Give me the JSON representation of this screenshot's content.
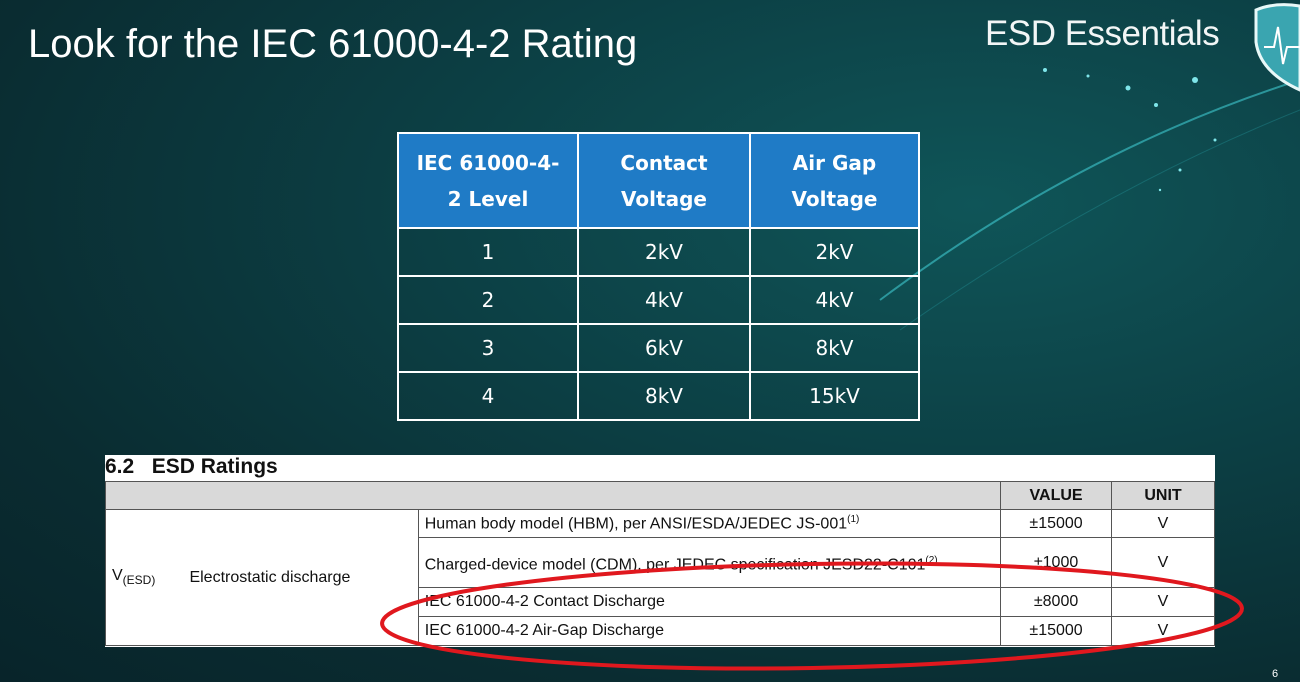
{
  "slide": {
    "title": "Look for the IEC 61000-4-2 Rating",
    "brand": "ESD Essentials",
    "page_number": "6"
  },
  "level_table": {
    "headers": [
      "IEC 61000-4-2 Level",
      "Contact Voltage",
      "Air Gap Voltage"
    ],
    "rows": [
      [
        "1",
        "2kV",
        "2kV"
      ],
      [
        "2",
        "4kV",
        "4kV"
      ],
      [
        "3",
        "6kV",
        "8kV"
      ],
      [
        "4",
        "8kV",
        "15kV"
      ]
    ]
  },
  "esd_ratings": {
    "title": "6.2   ESD Ratings",
    "headers": {
      "value": "VALUE",
      "unit": "UNIT"
    },
    "symbol": "V",
    "symbol_sub": "(ESD)",
    "parameter": "Electrostatic discharge",
    "rows": [
      {
        "condition": "Human body model (HBM), per ANSI/ESDA/JEDEC JS-001",
        "note": "(1)",
        "value": "±15000",
        "unit": "V"
      },
      {
        "condition": "Charged-device model (CDM), per JEDEC specification JESD22-C101",
        "note": "(2)",
        "value": "±1000",
        "unit": "V"
      },
      {
        "condition": "IEC 61000-4-2 Contact Discharge",
        "value": "±8000",
        "unit": "V"
      },
      {
        "condition": "IEC 61000-4-2 Air-Gap Discharge",
        "value": "±15000",
        "unit": "V"
      }
    ]
  },
  "colors": {
    "header_blue": "#1f7bc6",
    "highlight_red": "#e0181e"
  }
}
